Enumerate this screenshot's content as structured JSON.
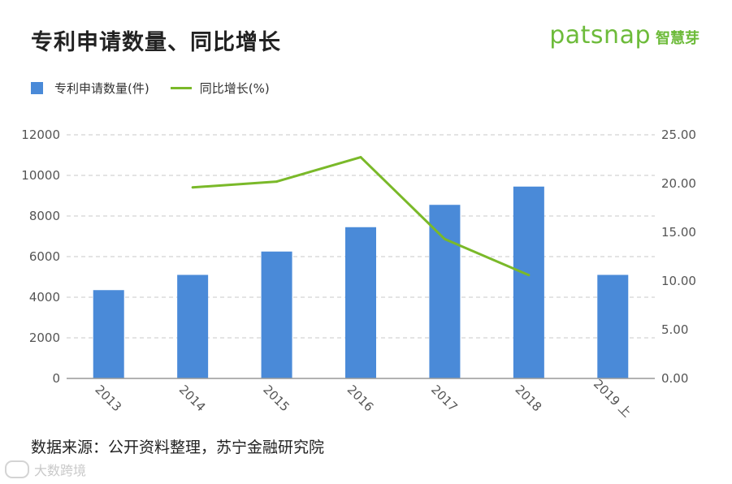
{
  "title": "专利申请数量、同比增长",
  "brand": {
    "logo": "patsnap",
    "cn": "智慧芽"
  },
  "legend": {
    "bar_label": "专利申请数量(件)",
    "line_label": "同比增长(%)"
  },
  "source": "数据来源：公开资料整理，苏宁金融研究院",
  "watermark": "大数跨境",
  "colors": {
    "bar": "#4a8ad8",
    "line": "#7ab929",
    "grid": "#c8c8c8"
  },
  "chart_data": {
    "type": "bar",
    "categories": [
      "2013",
      "2014",
      "2015",
      "2016",
      "2017",
      "2018",
      "2019 上"
    ],
    "series": [
      {
        "name": "专利申请数量(件)",
        "type": "bar",
        "axis": "left",
        "values": [
          4350,
          5100,
          6250,
          7450,
          8550,
          9450,
          5100
        ]
      },
      {
        "name": "同比增长(%)",
        "type": "line",
        "axis": "right",
        "values": [
          null,
          19.6,
          20.2,
          22.7,
          14.3,
          10.6,
          null
        ]
      }
    ],
    "left_axis": {
      "ylim": [
        0,
        12000
      ],
      "ticks": [
        "0",
        "2000",
        "4000",
        "6000",
        "8000",
        "10000",
        "12000"
      ]
    },
    "right_axis": {
      "ylim": [
        0,
        25
      ],
      "ticks": [
        "0.00",
        "5.00",
        "10.00",
        "15.00",
        "20.00",
        "25.00"
      ]
    },
    "grid": true,
    "legend_position": "top-left"
  }
}
